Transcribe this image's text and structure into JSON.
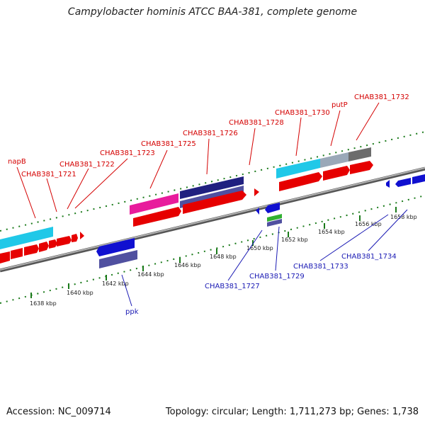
{
  "header": {
    "title": "Campylobacter hominis ATCC BAA-381, complete genome"
  },
  "footer": {
    "accession": "Accession: NC_009714",
    "summary": "Topology: circular; Length: 1,711,273 bp; Genes: 1,738"
  },
  "colors": {
    "backbone": "#8a8a8a",
    "forward_gene": "#e60000",
    "reverse_gene": "#1010d0",
    "cyan_feature": "#20c8e8",
    "pink_feature": "#e81c9c",
    "navy_feature": "#202080",
    "slate_feature": "#5050a0",
    "green_feature": "#30b030",
    "gray_feature": "#6c6c6c",
    "tick": "#1a7a1a",
    "label_forward": "#d40000",
    "label_reverse": "#1a1ab4"
  },
  "scale": {
    "tick_labels": [
      "1638 kbp",
      "1640 kbp",
      "1642 kbp",
      "1644 kbp",
      "1646 kbp",
      "1648 kbp",
      "1650 kbp",
      "1652 kbp",
      "1654 kbp",
      "1656 kbp",
      "1658 kbp"
    ]
  },
  "forward_labels": [
    "napB",
    "CHAB381_1721",
    "CHAB381_1722",
    "CHAB381_1723",
    "CHAB381_1725",
    "CHAB381_1726",
    "CHAB381_1728",
    "CHAB381_1730",
    "putP",
    "CHAB381_1732"
  ],
  "reverse_labels": [
    "ppk",
    "CHAB381_1727",
    "CHAB381_1729",
    "CHAB381_1733",
    "CHAB381_1734"
  ]
}
